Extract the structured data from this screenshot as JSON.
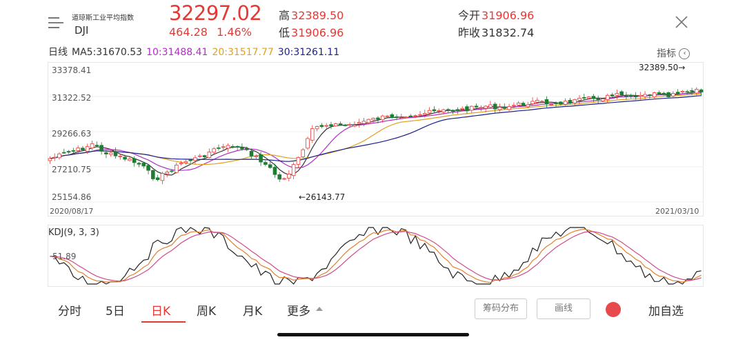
{
  "header": {
    "menu_icon": "hamburger-menu-icon",
    "index_name": "道琼斯工业平均指数",
    "index_code": "DJI",
    "last_price": "32297.02",
    "change": "464.28",
    "change_pct": "1.46%",
    "high_label": "高",
    "high_value": "32389.50",
    "low_label": "低",
    "low_value": "31906.96",
    "open_label": "今开",
    "open_value": "31906.96",
    "prev_close_label": "昨收",
    "prev_close_value": "31832.74",
    "close_icon": "close-x-icon"
  },
  "ma_bar": {
    "period_label": "日线",
    "ma5": "MA5:31670.53",
    "ma10": "10:31488.41",
    "ma20": "20:31517.77",
    "ma30": "30:31261.11",
    "indicator_label": "指标",
    "indicator_icon": "chevron-left-circle-icon"
  },
  "colors": {
    "up": "#e53935",
    "down": "#1e7d32",
    "ma5": "#333333",
    "ma10": "#b02fc4",
    "ma20": "#e0a020",
    "ma30": "#1c1f8a"
  },
  "price_chart": {
    "y_labels": [
      "33378.41",
      "31322.52",
      "29266.63",
      "27210.75",
      "25154.86"
    ],
    "start_date": "2020/08/17",
    "end_date": "2021/03/10",
    "max_annotation": "32389.50→",
    "min_annotation": "←26143.77"
  },
  "kdj_chart": {
    "label": "KDJ(9, 3, 3)",
    "level_label": "51.89"
  },
  "tabs": [
    {
      "label": "分时",
      "active": false
    },
    {
      "label": "5日",
      "active": false
    },
    {
      "label": "日K",
      "active": true
    },
    {
      "label": "周K",
      "active": false
    },
    {
      "label": "月K",
      "active": false
    },
    {
      "label": "更多",
      "active": false
    }
  ],
  "more_icon": "triangle-up-icon",
  "tools": {
    "chip_distribution": "筹码分布",
    "draw_line": "画线",
    "record_icon": "red-dot-icon",
    "add_watchlist": "加自选"
  }
}
